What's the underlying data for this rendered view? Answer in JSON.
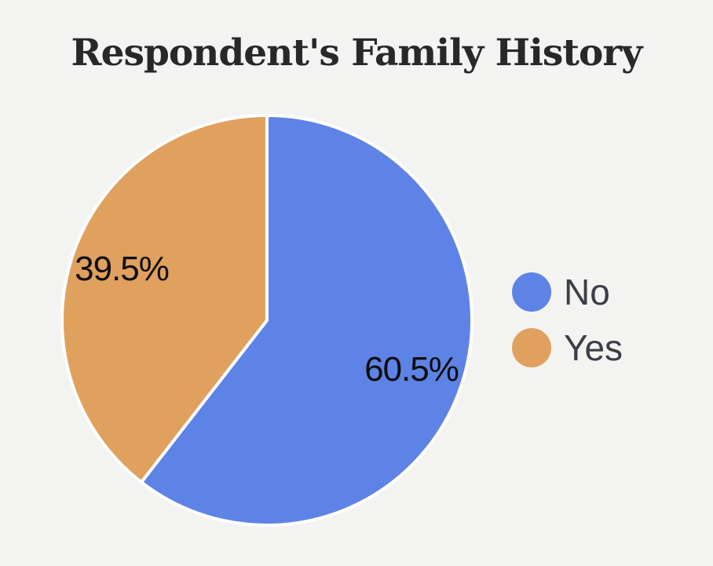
{
  "page": {
    "background_color": "#f3f3f1"
  },
  "chart_data": {
    "type": "pie",
    "title": "Respondent's Family History",
    "labels": [
      "No",
      "Yes"
    ],
    "values": [
      60.5,
      39.5
    ],
    "value_labels": [
      "60.5%",
      "39.5%"
    ],
    "colors": [
      "#5e83e6",
      "#e0a05e"
    ],
    "start_angle": "top (12 o'clock)",
    "direction": "clockwise",
    "slice_border_color": "#ffffff",
    "legend_position": "right",
    "label_color": "#0d0d0d",
    "title_color": "#28282b",
    "legend_text_color": "#3b3f46"
  }
}
